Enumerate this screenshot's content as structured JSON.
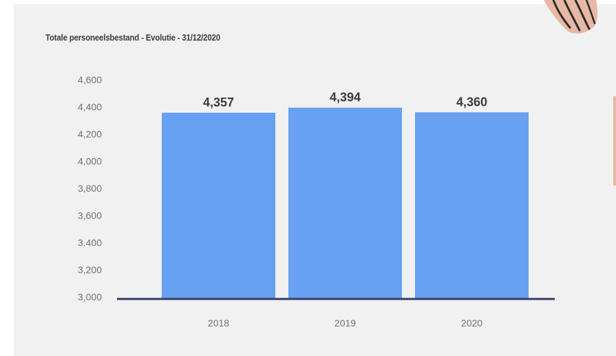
{
  "chart_data": {
    "type": "bar",
    "title": "Totale personeelsbestand - Evolutie - 31/12/2020",
    "categories": [
      "2018",
      "2019",
      "2020"
    ],
    "values": [
      4357,
      4394,
      4360
    ],
    "value_labels": [
      "4,357",
      "4,394",
      "4,360"
    ],
    "ylim": [
      3000,
      4600
    ],
    "yticks": [
      3000,
      3200,
      3400,
      3600,
      3800,
      4000,
      4200,
      4400,
      4600
    ],
    "ytick_labels": [
      "3,000",
      "3,200",
      "3.400",
      "3,600",
      "3,800",
      "4,000",
      "4,200",
      "4,400",
      "4,600"
    ],
    "xlabel": "",
    "ylabel": "",
    "grid": false,
    "bar_color": "#68a0f2",
    "axis_color": "#2e3f66",
    "tick_label_color": "#6e7078",
    "value_label_color": "#3b3d44"
  }
}
